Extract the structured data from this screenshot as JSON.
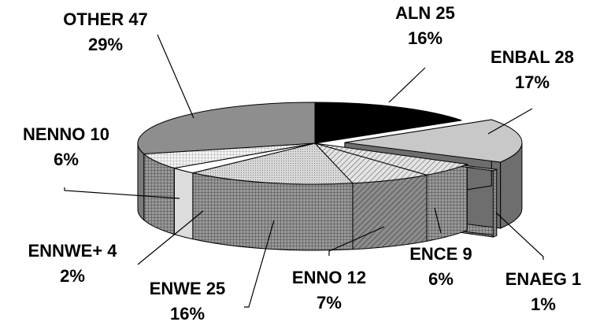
{
  "chart_data": {
    "type": "pie",
    "slices": [
      {
        "name": "ALN",
        "value": 25,
        "percent": "16%",
        "color": "#000000"
      },
      {
        "name": "ENBAL",
        "value": 28,
        "percent": "17%",
        "color": "#c8c8c8",
        "exploded": true
      },
      {
        "name": "ENAEG",
        "value": 1,
        "percent": "1%",
        "color": "#a0a0a0",
        "pattern": "grid"
      },
      {
        "name": "ENCE",
        "value": 9,
        "percent": "6%",
        "color": "#b4b4b4",
        "pattern": "grid"
      },
      {
        "name": "ENNO",
        "value": 12,
        "percent": "7%",
        "color": "#d2d2d2",
        "pattern": "diagonal"
      },
      {
        "name": "ENWE",
        "value": 25,
        "percent": "16%",
        "color": "#c3c3c3",
        "pattern": "dots"
      },
      {
        "name": "ENNWE+",
        "value": 4,
        "percent": "2%",
        "color": "#ffffff"
      },
      {
        "name": "NENNO",
        "value": 10,
        "percent": "6%",
        "color": "#ffffff",
        "pattern": "fine-grid"
      },
      {
        "name": "OTHER",
        "value": 47,
        "percent": "29%",
        "color": "#8c8c8c"
      }
    ],
    "title": "",
    "style": "3d-exploded-pie",
    "legend": "none"
  }
}
